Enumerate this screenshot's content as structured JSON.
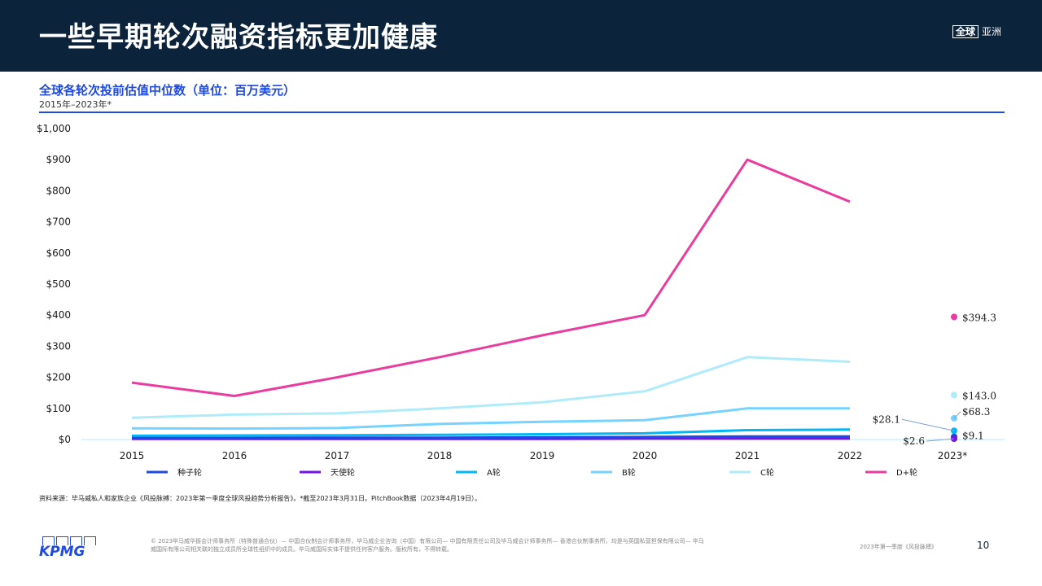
{
  "header": {
    "title": "一些早期轮次融资指标更加健康",
    "region_box": "全球",
    "region_label": "亚洲"
  },
  "chart_data": {
    "type": "line",
    "title": "全球各轮次投前估值中位数（单位：百万美元）",
    "subtitle": "2015年–2023年*",
    "categories": [
      "2015",
      "2016",
      "2017",
      "2018",
      "2019",
      "2020",
      "2021",
      "2022",
      "2023*"
    ],
    "ylim": [
      0,
      1000
    ],
    "yticks": [
      0,
      100,
      200,
      300,
      400,
      500,
      600,
      700,
      800,
      900,
      1000
    ],
    "ytick_labels": [
      "$0",
      "$100",
      "$200",
      "$300",
      "$400",
      "$500",
      "$600",
      "$700",
      "$800",
      "$900",
      "$1,000"
    ],
    "grid": false,
    "legend_position": "bottom",
    "series": [
      {
        "name": "种子轮",
        "color": "#1e49e2",
        "values": [
          5,
          5,
          6,
          6,
          7,
          8,
          10,
          10,
          null
        ],
        "point_2023": 9.1,
        "label_2023": "$9.1"
      },
      {
        "name": "天使轮",
        "color": "#7213ea",
        "values": [
          2,
          2,
          2,
          2,
          2,
          3,
          3,
          3,
          null
        ],
        "point_2023": 2.6,
        "label_2023": "$2.6"
      },
      {
        "name": "A轮",
        "color": "#00b8f5",
        "values": [
          12,
          13,
          14,
          15,
          17,
          20,
          30,
          32,
          null
        ],
        "point_2023": 28.1,
        "label_2023": "$28.1"
      },
      {
        "name": "B轮",
        "color": "#76d2ff",
        "values": [
          36,
          35,
          37,
          50,
          57,
          62,
          100,
          100,
          null
        ],
        "point_2023": 68.3,
        "label_2023": "$68.3"
      },
      {
        "name": "C轮",
        "color": "#b0ebfa",
        "values": [
          70,
          80,
          84,
          100,
          120,
          155,
          265,
          250,
          null
        ],
        "point_2023": 143.0,
        "label_2023": "$143.0"
      },
      {
        "name": "D+轮",
        "color": "#e83d9e",
        "values": [
          183,
          140,
          200,
          265,
          335,
          400,
          900,
          765,
          null
        ],
        "point_2023": 394.3,
        "label_2023": "$394.3"
      }
    ]
  },
  "source_note": "资料来源：毕马威私人和家族企业《风投脉搏：2023年第一季度全球风投趋势分析报告》。*截至2023年3月31日。PitchBook数据（2023年4月19日）。",
  "footer": {
    "logo_text": "KPMG",
    "copyright": "© 2023毕马威华振会计师事务所（特殊普通合伙）— 中国合伙制会计师事务所，毕马威企业咨询（中国）有限公司— 中国有限责任公司及毕马威会计师事务所— 香港合伙制事务所，均是与英国私营担保有限公司— 毕马威国际有限公司相关联的独立成员所全球性组织中的成员。毕马威国际实体不提供任何客户服务。版权所有，不得转载。",
    "report_name": "2023年第一季度《风投脉搏》",
    "page_number": "10"
  }
}
